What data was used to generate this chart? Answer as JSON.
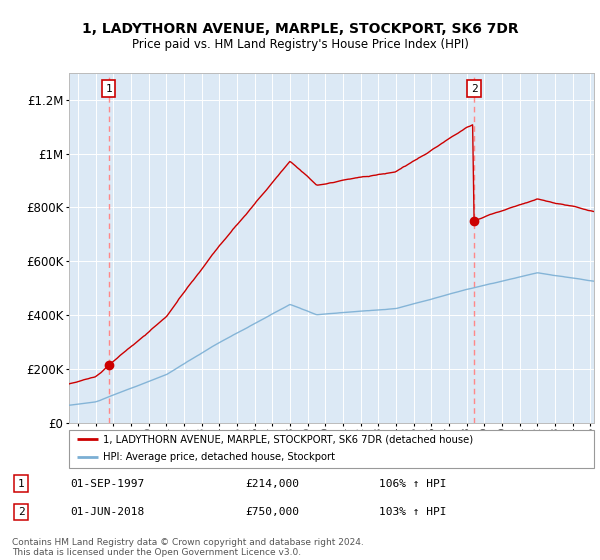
{
  "title1": "1, LADYTHORN AVENUE, MARPLE, STOCKPORT, SK6 7DR",
  "title2": "Price paid vs. HM Land Registry's House Price Index (HPI)",
  "ylim": [
    0,
    1300000
  ],
  "yticks": [
    0,
    200000,
    400000,
    600000,
    800000,
    1000000,
    1200000
  ],
  "ytick_labels": [
    "£0",
    "£200K",
    "£400K",
    "£600K",
    "£800K",
    "£1M",
    "£1.2M"
  ],
  "bg_color": "#dce9f5",
  "line1_color": "#cc0000",
  "line2_color": "#7bafd4",
  "marker_color": "#cc0000",
  "vline_color": "#ff8888",
  "annotation_border_color": "#cc0000",
  "sale1_year": 1997.75,
  "sale1_price": 214000,
  "sale2_year": 2018.42,
  "sale2_price": 750000,
  "legend_line1": "1, LADYTHORN AVENUE, MARPLE, STOCKPORT, SK6 7DR (detached house)",
  "legend_line2": "HPI: Average price, detached house, Stockport",
  "note1_date": "01-SEP-1997",
  "note1_price": "£214,000",
  "note1_hpi": "106% ↑ HPI",
  "note2_date": "01-JUN-2018",
  "note2_price": "£750,000",
  "note2_hpi": "103% ↑ HPI",
  "footer": "Contains HM Land Registry data © Crown copyright and database right 2024.\nThis data is licensed under the Open Government Licence v3.0.",
  "xstart": 1995.5,
  "xend": 2025.2
}
